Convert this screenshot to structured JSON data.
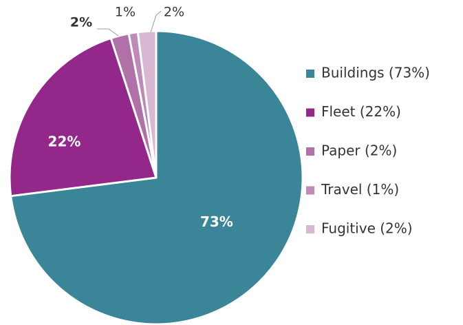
{
  "chart_data": {
    "type": "pie",
    "categories": [
      "Buildings (73%)",
      "Fleet (22%)",
      "Paper (2%)",
      "Travel (1%)",
      "Fugitive (2%)"
    ],
    "values": [
      73,
      22,
      2,
      1,
      2
    ],
    "value_labels": [
      "73%",
      "22%",
      "2%",
      "1%",
      "2%"
    ],
    "colors": [
      "#3a8598",
      "#93278a",
      "#b071a8",
      "#c08ab8",
      "#d9b8d4"
    ],
    "legend": "right"
  }
}
